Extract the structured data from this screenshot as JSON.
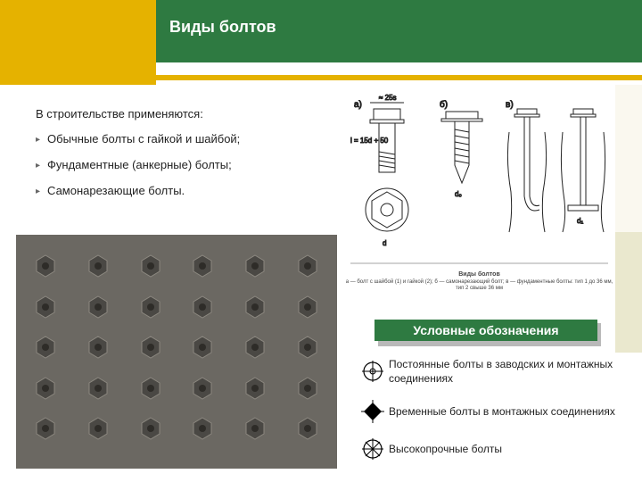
{
  "title": "Виды болтов",
  "intro": "В строительстве применяются:",
  "bullets": [
    "Обычные болты с гайкой и шайбой;",
    "Фундаментные (анкерные) болты;",
    "Самонарезающие болты."
  ],
  "legend_title": "Условные обозначения",
  "legend": [
    "Постоянные болты в заводских и монтажных соединениях",
    "Временные болты в монтажных соединениях",
    "Высокопрочные болты"
  ],
  "diagram_caption_line1": "Виды болтов",
  "diagram_caption_line2": "а — болт с шайбой (1) и гайкой (2); б — самонарезающий болт; в — фундаментные болты: тип 1 до 36 мм, тип 2 свыше 36 мм",
  "diagram_labels": {
    "a": "а)",
    "b": "б)",
    "v": "в)",
    "d": "d",
    "d0": "d₀",
    "d1": "d₁",
    "h": "≈ 25s",
    "l": "l = 15d + 50"
  },
  "colors": {
    "header": "#2e7a41",
    "accent": "#e5b200",
    "photo_bg": "#6b6862",
    "bolt_photo": "#4a4844",
    "bolt_photo_light": "#8c8880",
    "diagram_stroke": "#222222"
  },
  "photo_grid": {
    "rows": 5,
    "cols": 6
  }
}
